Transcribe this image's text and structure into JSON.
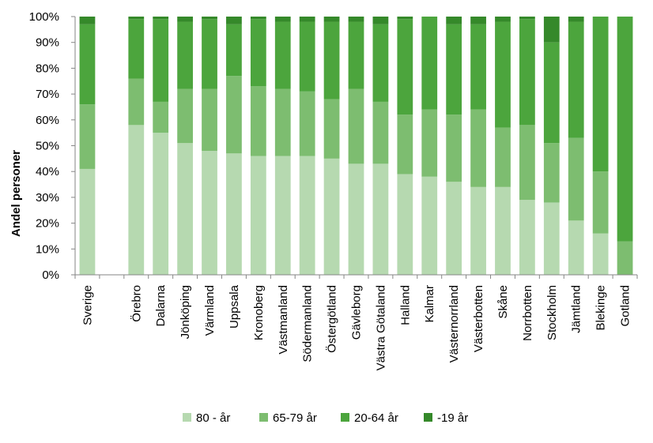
{
  "chart_data": {
    "type": "bar",
    "stacked": true,
    "ylabel": "Andel personer",
    "xlabel": "",
    "ylim": [
      0,
      100
    ],
    "yticks": [
      "0%",
      "10%",
      "20%",
      "30%",
      "40%",
      "50%",
      "60%",
      "70%",
      "80%",
      "90%",
      "100%"
    ],
    "grid": false,
    "legend_position": "bottom",
    "categories": [
      "Sverige",
      "Örebro",
      "Dalarna",
      "Jönköping",
      "Värmland",
      "Uppsala",
      "Kronoberg",
      "Västmanland",
      "Södermanland",
      "Östergötland",
      "Gävleborg",
      "Västra Götaland",
      "Halland",
      "Kalmar",
      "Västernorrland",
      "Västerbotten",
      "Skåne",
      "Norrbotten",
      "Stockholm",
      "Jämtland",
      "Blekinge",
      "Gotland"
    ],
    "series": [
      {
        "name": "80 - år",
        "color": "#b6d9b0",
        "values": [
          41,
          58,
          55,
          51,
          48,
          47,
          46,
          46,
          46,
          45,
          43,
          43,
          39,
          38,
          36,
          34,
          34,
          29,
          28,
          21,
          16,
          0
        ]
      },
      {
        "name": "65-79 år",
        "color": "#7dbd70",
        "values": [
          25,
          18,
          12,
          21,
          24,
          30,
          27,
          26,
          25,
          23,
          29,
          24,
          23,
          26,
          26,
          30,
          23,
          29,
          23,
          32,
          24,
          13
        ]
      },
      {
        "name": "20-64 år",
        "color": "#4ca53d",
        "values": [
          31,
          23,
          32,
          26,
          27,
          20,
          26,
          26,
          27,
          30,
          26,
          30,
          37,
          36,
          35,
          33,
          41,
          41,
          39,
          45,
          60,
          87
        ]
      },
      {
        "name": "-19 år",
        "color": "#35892a",
        "values": [
          3,
          1,
          1,
          2,
          1,
          3,
          1,
          2,
          2,
          2,
          2,
          3,
          1,
          0,
          3,
          3,
          2,
          1,
          10,
          2,
          0,
          0
        ]
      }
    ]
  }
}
